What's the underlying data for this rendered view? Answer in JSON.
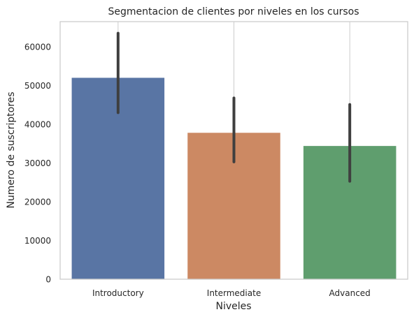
{
  "chart_data": {
    "type": "bar",
    "title": "Segmentacion de clientes por niveles en los cursos",
    "xlabel": "Niveles",
    "ylabel": "Numero de suscriptores",
    "categories": [
      "Introductory",
      "Intermediate",
      "Advanced"
    ],
    "values": [
      52000,
      37800,
      34400
    ],
    "error_bars": [
      [
        43000,
        63500
      ],
      [
        30300,
        46800
      ],
      [
        25300,
        45100
      ]
    ],
    "colors": [
      "#5975a4",
      "#cc8963",
      "#5f9e6e"
    ],
    "error_bar_color": "#3f3f3f",
    "ylim": [
      0,
      66500
    ],
    "yticks": [
      0,
      10000,
      20000,
      30000,
      40000,
      50000,
      60000
    ],
    "ytick_labels": [
      "0",
      "10000",
      "20000",
      "30000",
      "40000",
      "50000",
      "60000"
    ],
    "grid": "vertical",
    "grid_color": "#cccccc",
    "spine_color": "#cccccc",
    "background": "#ffffff"
  }
}
